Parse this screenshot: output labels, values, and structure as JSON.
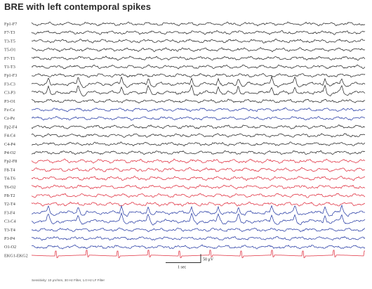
{
  "title": "BRE with left contemporal spikes",
  "chart_data": {
    "type": "line",
    "title": "BRE with left contemporal spikes",
    "channels": [
      {
        "label": "Fp1-F7",
        "color": "#2a2a2a",
        "group": "black"
      },
      {
        "label": "F7-T3",
        "color": "#2a2a2a",
        "group": "black"
      },
      {
        "label": "T3-T5",
        "color": "#2a2a2a",
        "group": "black"
      },
      {
        "label": "T5-O1",
        "color": "#2a2a2a",
        "group": "black"
      },
      {
        "label": "F7-T1",
        "color": "#2a2a2a",
        "group": "black"
      },
      {
        "label": "T1-T3",
        "color": "#2a2a2a",
        "group": "black"
      },
      {
        "label": "Fp1-F3",
        "color": "#2a2a2a",
        "group": "black"
      },
      {
        "label": "F3-C3",
        "color": "#2a2a2a",
        "group": "black"
      },
      {
        "label": "C3-P3",
        "color": "#2a2a2a",
        "group": "black"
      },
      {
        "label": "P3-O1",
        "color": "#2a2a2a",
        "group": "black"
      },
      {
        "label": "Fz-Cz",
        "color": "#2b3fa6",
        "group": "blue"
      },
      {
        "label": "Cz-Pz",
        "color": "#2b3fa6",
        "group": "blue"
      },
      {
        "label": "Fp2-F4",
        "color": "#2a2a2a",
        "group": "black"
      },
      {
        "label": "F4-C4",
        "color": "#2a2a2a",
        "group": "black"
      },
      {
        "label": "C4-P4",
        "color": "#2a2a2a",
        "group": "black"
      },
      {
        "label": "P4-O2",
        "color": "#2a2a2a",
        "group": "black"
      },
      {
        "label": "Fp2-F8",
        "color": "#e03040",
        "group": "red"
      },
      {
        "label": "F8-T4",
        "color": "#e03040",
        "group": "red"
      },
      {
        "label": "T4-T6",
        "color": "#e03040",
        "group": "red"
      },
      {
        "label": "T6-O2",
        "color": "#e03040",
        "group": "red"
      },
      {
        "label": "F8-T2",
        "color": "#e03040",
        "group": "red"
      },
      {
        "label": "T2-T4",
        "color": "#e03040",
        "group": "red"
      },
      {
        "label": "F3-F4",
        "color": "#2b3fa6",
        "group": "blue"
      },
      {
        "label": "C3-C4",
        "color": "#2b3fa6",
        "group": "blue"
      },
      {
        "label": "T3-T4",
        "color": "#2b3fa6",
        "group": "blue"
      },
      {
        "label": "P3-P4",
        "color": "#2b3fa6",
        "group": "blue"
      },
      {
        "label": "O1-O2",
        "color": "#2b3fa6",
        "group": "blue"
      },
      {
        "label": "EKG1-EKG2",
        "color": "#e03040",
        "group": "red"
      }
    ],
    "spike_time_fractions": [
      0.05,
      0.14,
      0.27,
      0.35,
      0.48,
      0.56,
      0.62,
      0.72,
      0.79,
      0.88,
      0.93
    ],
    "spike_channels": [
      "F3-C3",
      "C3-P3",
      "F3-F4",
      "C3-C4"
    ],
    "calibration": {
      "time_label": "1 sec",
      "amplitude_label": "50 μV"
    },
    "footer": "Sensitivity: 10 μV/mm, 30 Hz Filter, 1.0 Hz LF Filter"
  }
}
